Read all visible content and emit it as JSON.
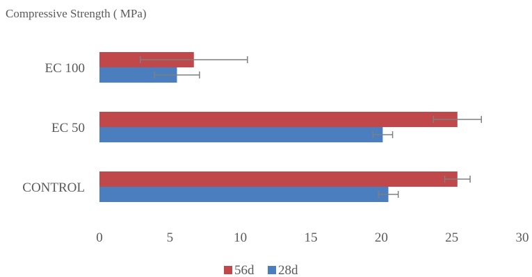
{
  "chart_data": {
    "type": "bar",
    "orientation": "horizontal",
    "title": "Compressive Strength ( MPa)",
    "xlabel": "",
    "ylabel": "",
    "categories": [
      "CONTROL",
      "EC 50",
      "EC 100"
    ],
    "series": [
      {
        "name": "28d",
        "color": "#4a7ebf",
        "values": [
          20.5,
          20.1,
          5.5
        ],
        "errors": [
          0.7,
          0.7,
          1.6
        ]
      },
      {
        "name": "56d",
        "color": "#c0484a",
        "values": [
          25.4,
          25.4,
          6.7
        ],
        "errors": [
          0.9,
          1.7,
          3.8
        ]
      }
    ],
    "xlim": [
      0,
      30
    ],
    "xticks": [
      0,
      5,
      10,
      15,
      20,
      25,
      30
    ],
    "grid": false,
    "legend_position": "bottom"
  }
}
